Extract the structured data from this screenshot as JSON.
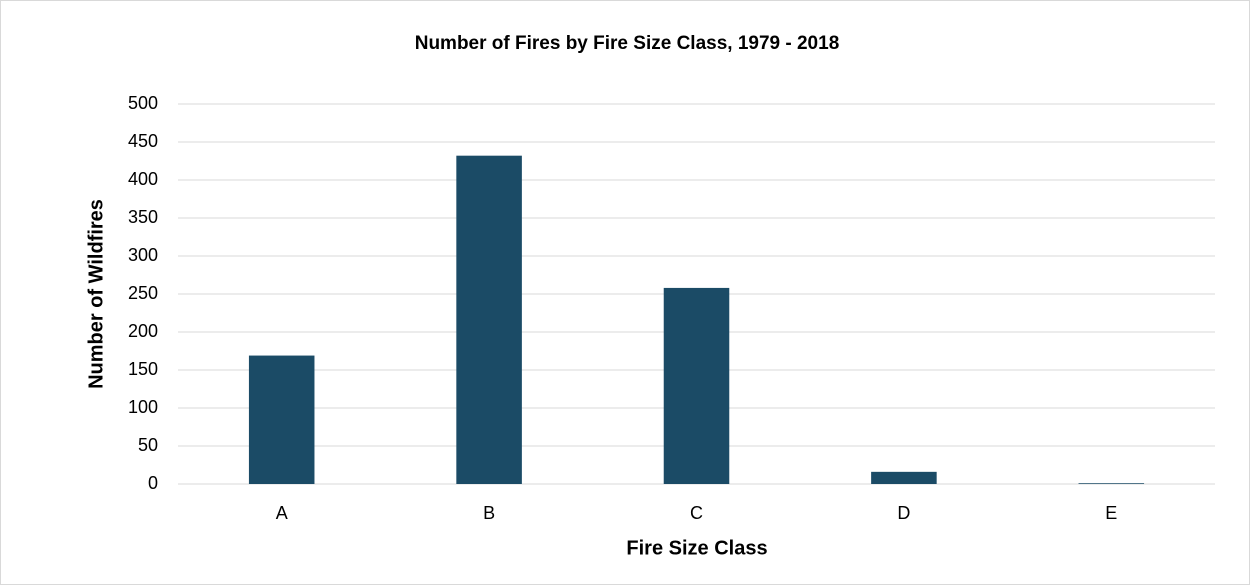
{
  "chart_data": {
    "type": "bar",
    "title": "Number of Fires by Fire Size Class, 1979 - 2018",
    "x_label": "Fire Size Class",
    "y_label": "Number of Wildfires",
    "categories": [
      "A",
      "B",
      "C",
      "D",
      "E"
    ],
    "values": [
      169,
      432,
      258,
      16,
      1
    ],
    "color": "#1b4b66",
    "ylim": [
      0,
      500
    ],
    "yticks": [
      0,
      50,
      100,
      150,
      200,
      250,
      300,
      350,
      400,
      450,
      500
    ],
    "grid": true
  }
}
